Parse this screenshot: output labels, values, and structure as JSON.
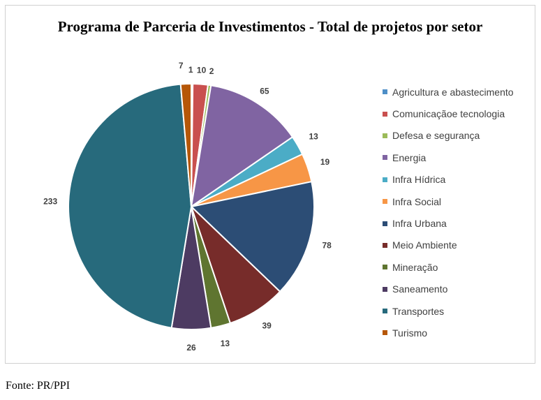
{
  "chart_data": {
    "type": "pie",
    "title": "Programa de Parceria de Investimentos - Total de projetos por setor",
    "categories": [
      "Agricultura e abastecimento",
      "Comunicaçãoe tecnologia",
      "Defesa e segurança",
      "Energia",
      "Infra Hídrica",
      "Infra Social",
      "Infra Urbana",
      "Meio Ambiente",
      "Mineração",
      "Saneamento",
      "Transportes",
      "Turismo"
    ],
    "values": [
      1,
      10,
      2,
      65,
      13,
      19,
      78,
      39,
      13,
      26,
      233,
      7
    ],
    "colors": [
      "#4e8fc7",
      "#c9504f",
      "#9bbb59",
      "#8064a2",
      "#4bacc6",
      "#f79646",
      "#2c4d75",
      "#772c2a",
      "#5f7530",
      "#4d3b62",
      "#276a7c",
      "#b65708"
    ],
    "legend_position": "right"
  },
  "source": "Fonte: PR/PPI"
}
